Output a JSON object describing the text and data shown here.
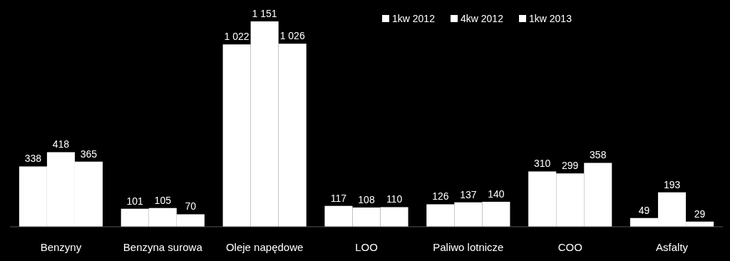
{
  "chart_data": {
    "type": "bar",
    "categories": [
      "Benzyny",
      "Benzyna surowa",
      "Oleje napędowe",
      "LOO",
      "Paliwo lotnicze",
      "COO",
      "Asfalty"
    ],
    "series": [
      {
        "name": "1kw 2012",
        "color": "#ffffff",
        "values": [
          338,
          101,
          1022,
          117,
          126,
          310,
          49
        ],
        "value_labels": [
          "338",
          "101",
          "1 022",
          "117",
          "126",
          "310",
          "49"
        ]
      },
      {
        "name": "4kw 2012",
        "color": "#ffffff",
        "values": [
          418,
          105,
          1151,
          108,
          137,
          299,
          193
        ],
        "value_labels": [
          "418",
          "105",
          "1 151",
          "108",
          "137",
          "299",
          "193"
        ]
      },
      {
        "name": "1kw 2013",
        "color": "#ffffff",
        "values": [
          365,
          70,
          1026,
          110,
          140,
          358,
          29
        ],
        "value_labels": [
          "365",
          "70",
          "1 026",
          "110",
          "140",
          "358",
          "29"
        ]
      }
    ],
    "legend": "top right"
  }
}
